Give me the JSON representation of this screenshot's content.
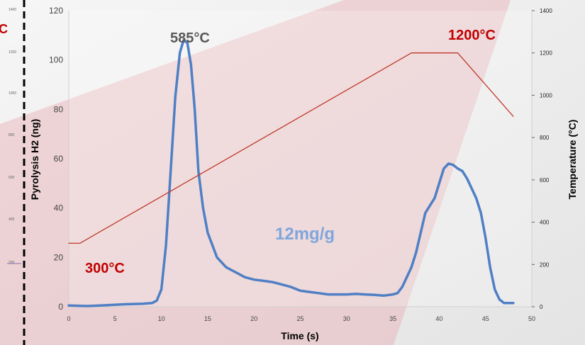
{
  "chart_data": {
    "type": "line",
    "xlabel": "Time (s)",
    "ylabel_left": "Pyrolysis H2 (ng)",
    "ylabel_right": "Temperature (°C)",
    "xlim": [
      0,
      50
    ],
    "ylim_left": [
      0,
      120
    ],
    "ylim_right": [
      0,
      1400
    ],
    "x_ticks": [
      "0",
      "5",
      "10",
      "15",
      "20",
      "25",
      "30",
      "35",
      "40",
      "45",
      "50"
    ],
    "y_left_ticks": [
      "0",
      "20",
      "40",
      "60",
      "80",
      "100",
      "120"
    ],
    "y_right_ticks": [
      "0",
      "200",
      "400",
      "600",
      "800",
      "1000",
      "1200",
      "1400"
    ],
    "grid": false,
    "colors": {
      "h2_series": "#4f7fc4",
      "temperature_series": "#c0392b",
      "annotation_red": "#c00000",
      "annotation_gray": "#595959",
      "annotation_blue": "#7fa6dc",
      "background_wedge": "#e7a9ae"
    },
    "series": [
      {
        "axis": "left",
        "color": "#4f7fc4",
        "x": [
          0,
          2,
          4,
          6,
          8,
          9,
          9.5,
          10,
          10.5,
          11,
          11.5,
          12,
          12.4,
          12.8,
          13.2,
          13.6,
          14,
          14.5,
          15,
          16,
          17,
          18,
          19,
          20,
          21,
          22,
          23,
          24,
          25,
          26,
          27,
          28,
          29,
          30,
          31,
          32,
          33,
          34,
          35,
          35.5,
          36,
          36.5,
          37,
          37.5,
          38,
          38.5,
          39,
          39.5,
          40,
          40.5,
          41,
          41.5,
          42,
          42.5,
          43,
          43.5,
          44,
          44.5,
          45,
          45.5,
          46,
          46.5,
          47,
          47.5,
          48
        ],
        "y": [
          0.5,
          0.3,
          0.6,
          1,
          1.2,
          1.5,
          2.5,
          7,
          25,
          55,
          85,
          103,
          108,
          107,
          98,
          80,
          55,
          40,
          30,
          20,
          16,
          14,
          12,
          11,
          10.5,
          10,
          9,
          8,
          6.5,
          6,
          5.5,
          5,
          5,
          5,
          5.2,
          5,
          4.8,
          4.5,
          5,
          5.5,
          8,
          12,
          16,
          22,
          30,
          38,
          41,
          44,
          50,
          56,
          58,
          57.5,
          56,
          55,
          52,
          48,
          44,
          38,
          28,
          16,
          7,
          3,
          1.5,
          1.5,
          1.5
        ]
      },
      {
        "axis": "right",
        "color": "#c0392b",
        "x": [
          0,
          1.2,
          37,
          42,
          48
        ],
        "y": [
          300,
          300,
          1200,
          1200,
          900
        ]
      }
    ],
    "annotations": [
      {
        "text": "585°C",
        "x": 12.8,
        "y": 108,
        "color": "#595959"
      },
      {
        "text": "1200°C",
        "x": 42,
        "y": 1200,
        "color": "#c00000"
      },
      {
        "text": "300°C",
        "x": 4,
        "y": 17,
        "color": "#c00000"
      },
      {
        "text": "12mg/g",
        "x": 27,
        "y": 32,
        "color": "#7fa6dc"
      }
    ],
    "edge_fragments": {
      "left_label": "C",
      "left_ticks": [
        "1400",
        "1200",
        "1000",
        "800",
        "600",
        "400",
        "200"
      ]
    }
  }
}
